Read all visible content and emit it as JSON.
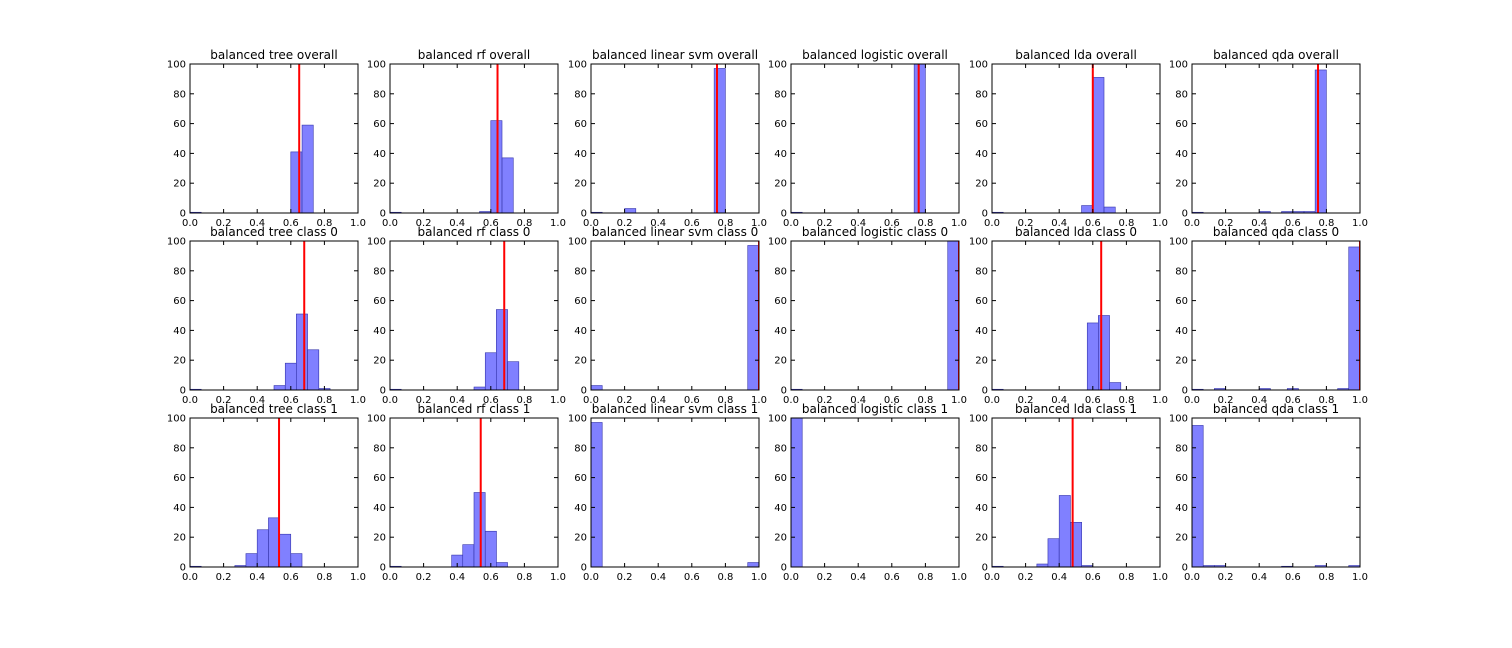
{
  "chart_data": [
    {
      "type": "bar",
      "title": "balanced tree overall",
      "xlim": [
        0,
        1
      ],
      "ylim": [
        0,
        100
      ],
      "bin_width": 0.0667,
      "bars": [
        {
          "x": 0.0,
          "value": 0.5
        },
        {
          "x": 0.6,
          "value": 41
        },
        {
          "x": 0.667,
          "value": 59
        }
      ],
      "mean": 0.65
    },
    {
      "type": "bar",
      "title": "balanced rf overall",
      "xlim": [
        0,
        1
      ],
      "ylim": [
        0,
        100
      ],
      "bin_width": 0.0667,
      "bars": [
        {
          "x": 0.0,
          "value": 0.5
        },
        {
          "x": 0.533,
          "value": 1
        },
        {
          "x": 0.6,
          "value": 62
        },
        {
          "x": 0.667,
          "value": 37
        }
      ],
      "mean": 0.64
    },
    {
      "type": "bar",
      "title": "balanced linear svm overall",
      "xlim": [
        0,
        1
      ],
      "ylim": [
        0,
        100
      ],
      "bin_width": 0.0667,
      "bars": [
        {
          "x": 0.0,
          "value": 0.5
        },
        {
          "x": 0.2,
          "value": 3
        },
        {
          "x": 0.733,
          "value": 97
        }
      ],
      "mean": 0.75
    },
    {
      "type": "bar",
      "title": "balanced logistic overall",
      "xlim": [
        0,
        1
      ],
      "ylim": [
        0,
        100
      ],
      "bin_width": 0.0667,
      "bars": [
        {
          "x": 0.0,
          "value": 0.5
        },
        {
          "x": 0.733,
          "value": 100
        }
      ],
      "mean": 0.76
    },
    {
      "type": "bar",
      "title": "balanced lda overall",
      "xlim": [
        0,
        1
      ],
      "ylim": [
        0,
        100
      ],
      "bin_width": 0.0667,
      "bars": [
        {
          "x": 0.0,
          "value": 0.5
        },
        {
          "x": 0.533,
          "value": 5
        },
        {
          "x": 0.6,
          "value": 91
        },
        {
          "x": 0.667,
          "value": 4
        }
      ],
      "mean": 0.6
    },
    {
      "type": "bar",
      "title": "balanced qda overall",
      "xlim": [
        0,
        1
      ],
      "ylim": [
        0,
        100
      ],
      "bin_width": 0.0667,
      "bars": [
        {
          "x": 0.0,
          "value": 0.5
        },
        {
          "x": 0.4,
          "value": 1
        },
        {
          "x": 0.533,
          "value": 1
        },
        {
          "x": 0.6,
          "value": 1
        },
        {
          "x": 0.667,
          "value": 1
        },
        {
          "x": 0.733,
          "value": 96
        }
      ],
      "mean": 0.75
    },
    {
      "type": "bar",
      "title": "balanced tree class 0",
      "xlim": [
        0,
        1
      ],
      "ylim": [
        0,
        100
      ],
      "bin_width": 0.0667,
      "bars": [
        {
          "x": 0.0,
          "value": 0.5
        },
        {
          "x": 0.5,
          "value": 3
        },
        {
          "x": 0.567,
          "value": 18
        },
        {
          "x": 0.633,
          "value": 51
        },
        {
          "x": 0.7,
          "value": 27
        },
        {
          "x": 0.767,
          "value": 1
        }
      ],
      "mean": 0.68
    },
    {
      "type": "bar",
      "title": "balanced rf class 0",
      "xlim": [
        0,
        1
      ],
      "ylim": [
        0,
        100
      ],
      "bin_width": 0.0667,
      "bars": [
        {
          "x": 0.0,
          "value": 0.5
        },
        {
          "x": 0.5,
          "value": 2
        },
        {
          "x": 0.567,
          "value": 25
        },
        {
          "x": 0.633,
          "value": 54
        },
        {
          "x": 0.7,
          "value": 19
        }
      ],
      "mean": 0.68
    },
    {
      "type": "bar",
      "title": "balanced linear svm class 0",
      "xlim": [
        0,
        1
      ],
      "ylim": [
        0,
        100
      ],
      "bin_width": 0.0667,
      "bars": [
        {
          "x": 0.0,
          "value": 3
        },
        {
          "x": 0.933,
          "value": 97
        }
      ],
      "mean": 1.0
    },
    {
      "type": "bar",
      "title": "balanced logistic class 0",
      "xlim": [
        0,
        1
      ],
      "ylim": [
        0,
        100
      ],
      "bin_width": 0.0667,
      "bars": [
        {
          "x": 0.0,
          "value": 0.5
        },
        {
          "x": 0.933,
          "value": 100
        }
      ],
      "mean": 1.0
    },
    {
      "type": "bar",
      "title": "balanced lda class 0",
      "xlim": [
        0,
        1
      ],
      "ylim": [
        0,
        100
      ],
      "bin_width": 0.0667,
      "bars": [
        {
          "x": 0.0,
          "value": 0.5
        },
        {
          "x": 0.567,
          "value": 45
        },
        {
          "x": 0.633,
          "value": 50
        },
        {
          "x": 0.7,
          "value": 5
        }
      ],
      "mean": 0.65
    },
    {
      "type": "bar",
      "title": "balanced qda class 0",
      "xlim": [
        0,
        1
      ],
      "ylim": [
        0,
        100
      ],
      "bin_width": 0.0667,
      "bars": [
        {
          "x": 0.0,
          "value": 0.5
        },
        {
          "x": 0.133,
          "value": 1
        },
        {
          "x": 0.4,
          "value": 1
        },
        {
          "x": 0.567,
          "value": 1
        },
        {
          "x": 0.867,
          "value": 1
        },
        {
          "x": 0.933,
          "value": 96
        }
      ],
      "mean": 1.0
    },
    {
      "type": "bar",
      "title": "balanced tree class 1",
      "xlim": [
        0,
        1
      ],
      "ylim": [
        0,
        100
      ],
      "bin_width": 0.0667,
      "bars": [
        {
          "x": 0.0,
          "value": 0.5
        },
        {
          "x": 0.267,
          "value": 1
        },
        {
          "x": 0.333,
          "value": 9
        },
        {
          "x": 0.4,
          "value": 25
        },
        {
          "x": 0.467,
          "value": 33
        },
        {
          "x": 0.533,
          "value": 22
        },
        {
          "x": 0.6,
          "value": 9
        }
      ],
      "mean": 0.53
    },
    {
      "type": "bar",
      "title": "balanced rf class 1",
      "xlim": [
        0,
        1
      ],
      "ylim": [
        0,
        100
      ],
      "bin_width": 0.0667,
      "bars": [
        {
          "x": 0.0,
          "value": 0.5
        },
        {
          "x": 0.367,
          "value": 8
        },
        {
          "x": 0.433,
          "value": 15
        },
        {
          "x": 0.5,
          "value": 50
        },
        {
          "x": 0.567,
          "value": 24
        },
        {
          "x": 0.633,
          "value": 3
        }
      ],
      "mean": 0.54
    },
    {
      "type": "bar",
      "title": "balanced linear svm class 1",
      "xlim": [
        0,
        1
      ],
      "ylim": [
        0,
        100
      ],
      "bin_width": 0.0667,
      "bars": [
        {
          "x": 0.0,
          "value": 97
        },
        {
          "x": 0.933,
          "value": 3
        }
      ],
      "mean": null
    },
    {
      "type": "bar",
      "title": "balanced logistic class 1",
      "xlim": [
        0,
        1
      ],
      "ylim": [
        0,
        100
      ],
      "bin_width": 0.0667,
      "bars": [
        {
          "x": 0.0,
          "value": 100
        }
      ],
      "mean": null
    },
    {
      "type": "bar",
      "title": "balanced lda class 1",
      "xlim": [
        0,
        1
      ],
      "ylim": [
        0,
        100
      ],
      "bin_width": 0.0667,
      "bars": [
        {
          "x": 0.0,
          "value": 0.5
        },
        {
          "x": 0.267,
          "value": 2
        },
        {
          "x": 0.333,
          "value": 19
        },
        {
          "x": 0.4,
          "value": 48
        },
        {
          "x": 0.467,
          "value": 30
        },
        {
          "x": 0.533,
          "value": 1
        }
      ],
      "mean": 0.48
    },
    {
      "type": "bar",
      "title": "balanced qda class 1",
      "xlim": [
        0,
        1
      ],
      "ylim": [
        0,
        100
      ],
      "bin_width": 0.0667,
      "bars": [
        {
          "x": 0.0,
          "value": 95
        },
        {
          "x": 0.067,
          "value": 1
        },
        {
          "x": 0.133,
          "value": 1
        },
        {
          "x": 0.533,
          "value": 0.5
        },
        {
          "x": 0.733,
          "value": 1
        },
        {
          "x": 0.933,
          "value": 1
        }
      ],
      "mean": null
    }
  ],
  "x_ticks": [
    "0.0",
    "0.2",
    "0.4",
    "0.6",
    "0.8",
    "1.0"
  ],
  "y_ticks": [
    "0",
    "20",
    "40",
    "60",
    "80",
    "100"
  ],
  "colors": {
    "bar_fill": "#8080ff",
    "bar_edge": "#3333aa",
    "mean_line": "#ff0000",
    "axis": "#000000"
  }
}
